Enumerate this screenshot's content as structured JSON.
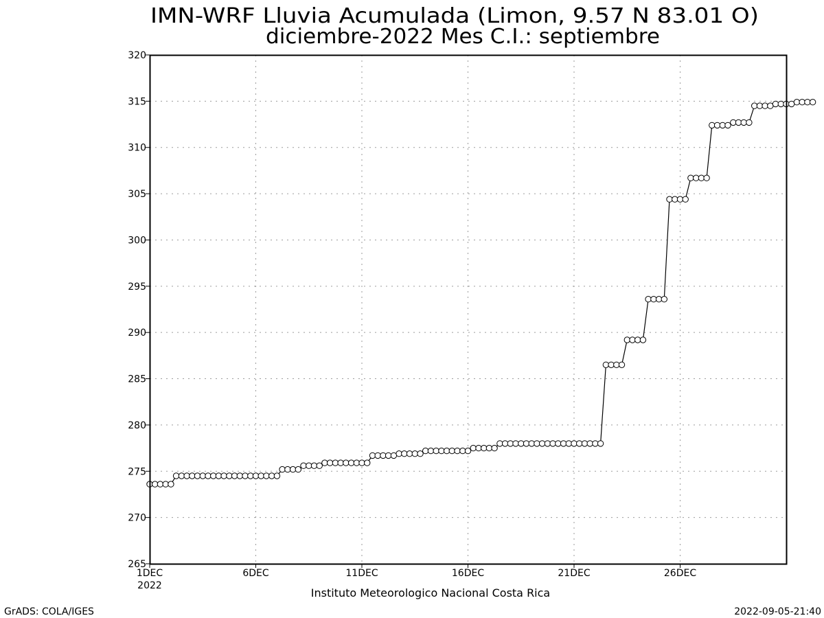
{
  "chart_data": {
    "type": "line",
    "title_line1": "IMN-WRF  Lluvia Acumulada  (Limon, 9.57  N 83.01  O)",
    "title_line2": "diciembre-2022 Mes C.I.: septiembre",
    "xlabel": "Instituto Meteorologico Nacional Costa Rica",
    "ylabel": "",
    "ylim": [
      265,
      320
    ],
    "yticks": [
      "265",
      "270",
      "275",
      "280",
      "285",
      "290",
      "295",
      "300",
      "305",
      "310",
      "315",
      "320"
    ],
    "xlim_days": [
      1,
      31
    ],
    "xticks": [
      {
        "label": "1DEC",
        "sub": "2022"
      },
      {
        "label": "6DEC",
        "sub": ""
      },
      {
        "label": "11DEC",
        "sub": ""
      },
      {
        "label": "16DEC",
        "sub": ""
      },
      {
        "label": "21DEC",
        "sub": ""
      },
      {
        "label": "26DEC",
        "sub": ""
      }
    ],
    "grid": true,
    "marker": "open-circle",
    "series": [
      {
        "time_step_hours": 6,
        "start": "2022-12-01 00Z",
        "values": [
          273.6,
          273.6,
          273.6,
          273.6,
          273.6,
          274.5,
          274.5,
          274.5,
          274.5,
          274.5,
          274.5,
          274.5,
          274.5,
          274.5,
          274.5,
          274.5,
          274.5,
          274.5,
          274.5,
          274.5,
          274.5,
          274.5,
          274.5,
          274.5,
          274.5,
          275.2,
          275.2,
          275.2,
          275.2,
          275.6,
          275.6,
          275.6,
          275.6,
          275.9,
          275.9,
          275.9,
          275.9,
          275.9,
          275.9,
          275.9,
          275.9,
          275.9,
          276.7,
          276.7,
          276.7,
          276.7,
          276.7,
          276.9,
          276.9,
          276.9,
          276.9,
          276.9,
          277.2,
          277.2,
          277.2,
          277.2,
          277.2,
          277.2,
          277.2,
          277.2,
          277.2,
          277.5,
          277.5,
          277.5,
          277.5,
          277.5,
          278.0,
          278.0,
          278.0,
          278.0,
          278.0,
          278.0,
          278.0,
          278.0,
          278.0,
          278.0,
          278.0,
          278.0,
          278.0,
          278.0,
          278.0,
          278.0,
          278.0,
          278.0,
          278.0,
          278.0,
          286.5,
          286.5,
          286.5,
          286.5,
          289.2,
          289.2,
          289.2,
          289.2,
          293.6,
          293.6,
          293.6,
          293.6,
          304.4,
          304.4,
          304.4,
          304.4,
          306.7,
          306.7,
          306.7,
          306.7,
          312.4,
          312.4,
          312.4,
          312.4,
          312.7,
          312.7,
          312.7,
          312.7,
          314.5,
          314.5,
          314.5,
          314.5,
          314.7,
          314.7,
          314.7,
          314.7,
          314.9,
          314.9,
          314.9,
          314.9
        ]
      }
    ]
  },
  "footer": {
    "left": "GrADS: COLA/IGES",
    "right": "2022-09-05-21:40"
  },
  "colors": {
    "background": "#ffffff",
    "line": "#000000",
    "grid": "#9a9a9a",
    "marker_fill": "#ffffff"
  }
}
